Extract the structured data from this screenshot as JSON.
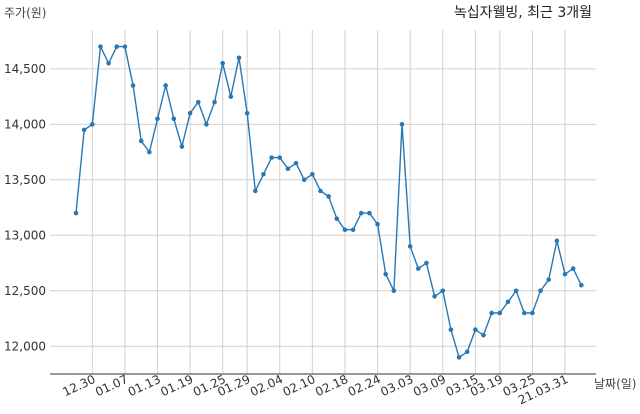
{
  "chart_data": {
    "type": "line",
    "title": "녹십자웰빙, 최근 3개월",
    "ylabel": "주가(원)",
    "xlabel": "날짜(일)",
    "ylim": [
      11750,
      14850
    ],
    "yticks": [
      12000,
      12500,
      13000,
      13500,
      14000,
      14500
    ],
    "ytick_labels": [
      "12,000",
      "12,500",
      "13,000",
      "13,500",
      "14,000",
      "14,500"
    ],
    "xtick_labels": [
      "12.30",
      "01.07",
      "01.13",
      "01.19",
      "01.25",
      "01.29",
      "02.04",
      "02.10",
      "02.18",
      "02.24",
      "03.03",
      "03.09",
      "03.15",
      "03.19",
      "03.25",
      "21.03.31"
    ],
    "xtick_index": [
      2,
      6,
      10,
      14,
      18,
      21,
      25,
      29,
      33,
      37,
      41,
      45,
      49,
      52,
      56,
      60
    ],
    "grid": true,
    "color": "#2878b5",
    "series": [
      {
        "values": [
          13200,
          13950,
          14000,
          14700,
          14550,
          14700,
          14700,
          14350,
          13850,
          13750,
          14050,
          14350,
          14050,
          13800,
          14100,
          14200,
          14000,
          14200,
          14550,
          14250,
          14600,
          14100,
          13400,
          13550,
          13700,
          13700,
          13600,
          13650,
          13500,
          13550,
          13400,
          13350,
          13150,
          13050,
          13050,
          13200,
          13200,
          13100,
          12650,
          12500,
          14000,
          12900,
          12700,
          12750,
          12450,
          12500,
          12150,
          11900,
          11950,
          12150,
          12100,
          12300,
          12300,
          12400,
          12500,
          12300,
          12300,
          12500,
          12600,
          12950,
          12650,
          12700,
          12550
        ]
      }
    ]
  }
}
